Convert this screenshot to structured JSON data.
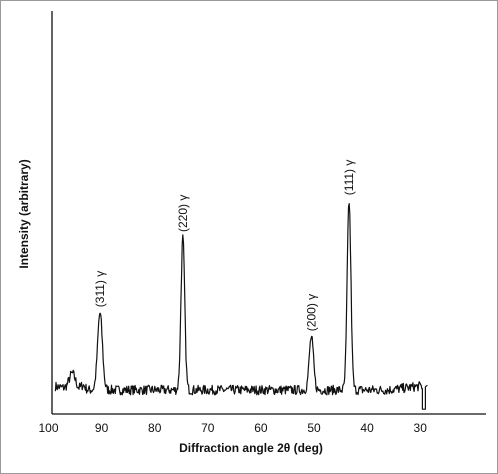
{
  "chart_data": {
    "type": "line",
    "title": "",
    "xlabel": "Diffraction angle 2θ (deg)",
    "ylabel": "Intensity (arbitrary)",
    "xlim": [
      100,
      30
    ],
    "x_reversed": true,
    "x_ticks": [
      "100",
      "90",
      "80",
      "70",
      "60",
      "50",
      "40",
      "30"
    ],
    "y_ticks_visible": false,
    "grid": false,
    "legend": "none",
    "series_color": "#111111",
    "baseline": 5,
    "noise_amplitude": 1.0,
    "peaks": [
      {
        "label": "(311) γ",
        "x": 90.3,
        "height": 48,
        "width": 0.45
      },
      {
        "label": "(220) γ",
        "x": 74.7,
        "height": 95,
        "width": 0.35
      },
      {
        "label": "(200) γ",
        "x": 50.5,
        "height": 33,
        "width": 0.4
      },
      {
        "label": "(111) γ",
        "x": 43.4,
        "height": 118,
        "width": 0.35
      }
    ],
    "features": [
      {
        "x": 95.5,
        "height": 10,
        "width": 0.6
      },
      {
        "x": 93.5,
        "height": 3,
        "width": 0.4
      }
    ],
    "end_dip": {
      "x": 29.2,
      "depth": 12
    }
  }
}
